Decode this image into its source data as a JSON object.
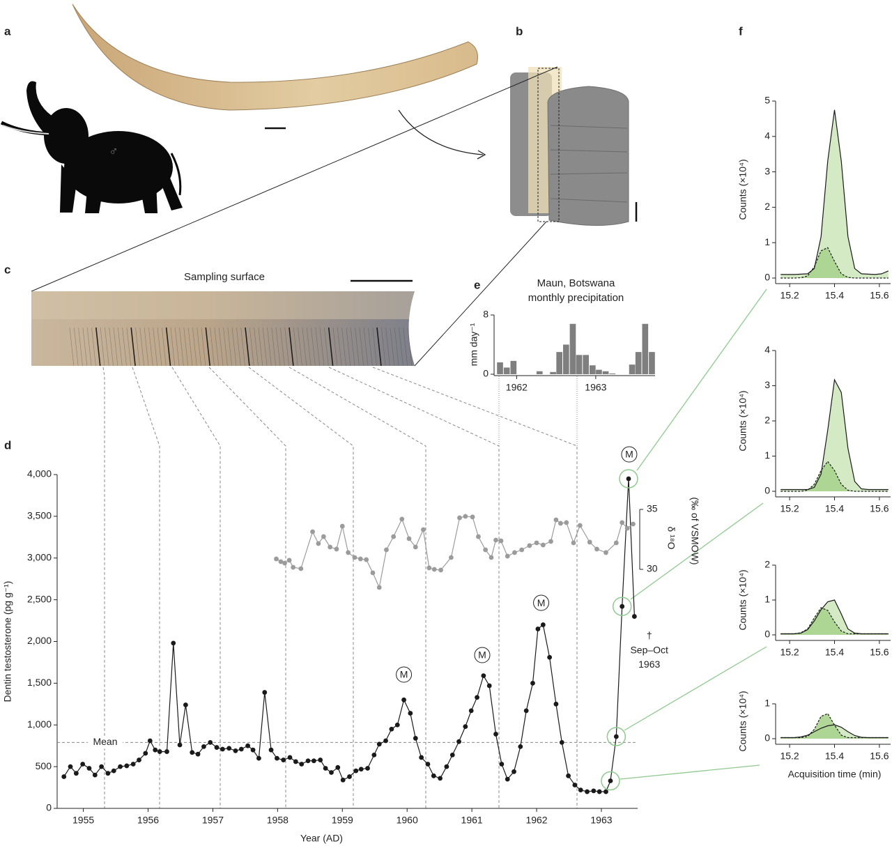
{
  "figure": {
    "panel_labels": [
      "a",
      "b",
      "c",
      "d",
      "e",
      "f"
    ],
    "sex_symbol": "♂",
    "sampling_surface": "Sampling surface"
  },
  "chart_data": [
    {
      "type": "line",
      "ylabel": "Dentin testosterone (pg g⁻¹)",
      "xlabel": "Year (AD)",
      "y2label": [
        "δ ¹⁸O",
        "(‰ of VSMOW)"
      ],
      "xlim": [
        1954.66,
        1963.56
      ],
      "xticks": [
        1955,
        1956,
        1957,
        1958,
        1959,
        1960,
        1961,
        1962,
        1963
      ],
      "ylim": [
        0,
        4000
      ],
      "yticks": [
        0,
        500,
        {
          "value": 1000,
          "label": "1,000"
        },
        {
          "value": 1500,
          "label": "1,500"
        },
        {
          "value": 2000,
          "label": "2,000"
        },
        {
          "value": 2500,
          "label": "2,500"
        },
        {
          "value": 3000,
          "label": "3,000"
        },
        {
          "value": 3500,
          "label": "3,500"
        },
        {
          "value": 4000,
          "label": "4,000"
        }
      ],
      "y2lim": [
        30,
        35
      ],
      "y2ticks": [
        30,
        35
      ],
      "series": [
        {
          "color": "#1a1a1a",
          "x": [
            1954.7,
            1954.8,
            1954.89,
            1954.99,
            1955.09,
            1955.18,
            1955.28,
            1955.38,
            1955.47,
            1955.57,
            1955.67,
            1955.77,
            1955.86,
            1955.96,
            1956.03,
            1956.11,
            1956.18,
            1956.29,
            1956.39,
            1956.49,
            1956.58,
            1956.68,
            1956.77,
            1956.86,
            1956.96,
            1957.06,
            1957.15,
            1957.25,
            1957.35,
            1957.44,
            1957.54,
            1957.62,
            1957.71,
            1957.8,
            1957.9,
            1957.99,
            1958.09,
            1958.19,
            1958.28,
            1958.37,
            1958.47,
            1958.56,
            1958.66,
            1958.74,
            1958.83,
            1958.93,
            1959.01,
            1959.11,
            1959.21,
            1959.29,
            1959.39,
            1959.49,
            1959.57,
            1959.67,
            1959.76,
            1959.85,
            1959.95,
            1960.05,
            1960.13,
            1960.22,
            1960.32,
            1960.41,
            1960.51,
            1960.61,
            1960.7,
            1960.8,
            1960.9,
            1960.99,
            1961.08,
            1961.18,
            1961.27,
            1961.37,
            1961.46,
            1961.55,
            1961.65,
            1961.75,
            1961.84,
            1961.94,
            1962.02,
            1962.1,
            1962.2,
            1962.3,
            1962.39,
            1962.49,
            1962.59,
            1962.68,
            1962.78,
            1962.88,
            1962.97,
            1963.07,
            1963.14,
            1963.23,
            1963.32,
            1963.42,
            1963.51
          ],
          "values": [
            380,
            500,
            420,
            530,
            480,
            400,
            500,
            420,
            450,
            500,
            510,
            530,
            580,
            660,
            810,
            700,
            680,
            680,
            1980,
            760,
            1240,
            670,
            650,
            740,
            790,
            730,
            710,
            720,
            690,
            710,
            750,
            700,
            600,
            1390,
            700,
            600,
            580,
            610,
            560,
            530,
            570,
            570,
            580,
            480,
            430,
            490,
            340,
            380,
            450,
            470,
            480,
            640,
            770,
            810,
            950,
            1000,
            1300,
            1140,
            840,
            610,
            530,
            390,
            360,
            500,
            640,
            800,
            980,
            1170,
            1330,
            1590,
            1470,
            890,
            530,
            350,
            440,
            740,
            1170,
            1500,
            2150,
            2200,
            1810,
            1250,
            790,
            390,
            280,
            220,
            200,
            210,
            200,
            200,
            330,
            860,
            2420,
            3950,
            2300
          ]
        },
        {
          "color": "#9b9b9b",
          "axis": "y2",
          "x": [
            1957.98,
            1958.05,
            1958.11,
            1958.18,
            1958.24,
            1958.36,
            1958.54,
            1958.63,
            1958.71,
            1958.81,
            1958.91,
            1959.0,
            1959.09,
            1959.19,
            1959.28,
            1959.37,
            1959.47,
            1959.57,
            1959.68,
            1959.79,
            1959.92,
            1960.03,
            1960.13,
            1960.25,
            1960.34,
            1960.42,
            1960.52,
            1960.68,
            1960.81,
            1960.9,
            1961.01,
            1961.1,
            1961.21,
            1961.3,
            1961.37,
            1961.45,
            1961.55,
            1961.66,
            1961.77,
            1961.89,
            1962.0,
            1962.1,
            1962.22,
            1962.3,
            1962.37,
            1962.46,
            1962.57,
            1962.67,
            1962.82,
            1962.93,
            1963.07,
            1963.23,
            1963.32,
            1963.4,
            1963.49
          ],
          "values": [
            30.87,
            30.64,
            30.52,
            30.76,
            30.17,
            30.06,
            33.14,
            32.15,
            32.73,
            31.86,
            31.69,
            33.6,
            31.4,
            30.99,
            30.87,
            30.81,
            29.71,
            28.49,
            31.63,
            32.73,
            34.19,
            32.56,
            31.86,
            33.31,
            30.12,
            30.0,
            29.94,
            30.99,
            34.3,
            34.42,
            34.37,
            32.73,
            31.63,
            30.99,
            32.44,
            32.38,
            31.1,
            31.4,
            31.63,
            31.98,
            32.21,
            32.03,
            32.33,
            34.13,
            33.84,
            33.9,
            32.21,
            33.66,
            32.27,
            31.69,
            31.4,
            32.21,
            33.9,
            33.43,
            33.78
          ]
        }
      ],
      "mean": {
        "value": 790,
        "label": "Mean"
      },
      "annotations": [
        {
          "text": "M",
          "x": 1959.95,
          "y": 1603
        },
        {
          "text": "M",
          "x": 1961.16,
          "y": 1837
        },
        {
          "text": "M",
          "x": 1962.07,
          "y": 2463
        },
        {
          "text": "M",
          "x": 1963.43,
          "y": 4242
        },
        {
          "text": "†",
          "x": 1963.74,
          "y": 2071
        },
        {
          "text": "Sep–Oct",
          "x": 1963.74,
          "y": 1896
        },
        {
          "text": "1963",
          "x": 1963.74,
          "y": 1728
        }
      ],
      "highlight_points": [
        93,
        92,
        91,
        90
      ],
      "highlight_color": "#8fc98f"
    },
    {
      "type": "bar",
      "title": [
        "Maun, Botswana",
        "monthly precipitation"
      ],
      "ylabel": "mm day⁻¹",
      "color": "#7f7f7f",
      "x": [
        1961.79,
        1961.875,
        1961.96,
        1962.04,
        1962.125,
        1962.21,
        1962.29,
        1962.375,
        1962.46,
        1962.54,
        1962.625,
        1962.71,
        1962.79,
        1962.875,
        1962.96,
        1963.04,
        1963.125,
        1963.21,
        1963.29,
        1963.375,
        1963.46,
        1963.54,
        1963.625,
        1963.71
      ],
      "values": [
        1.6,
        0.9,
        1.8,
        0,
        0,
        0,
        0.4,
        0,
        0.3,
        3.0,
        4.0,
        6.8,
        2.6,
        2.6,
        1.2,
        0.6,
        0.4,
        0.1,
        0,
        0,
        1.3,
        3.0,
        6.8,
        3.0
      ],
      "xlim": [
        1961.75,
        1963.75
      ],
      "xticks": [
        1962,
        1963
      ],
      "ylim": [
        0,
        8
      ],
      "yticks": [
        0,
        8
      ]
    },
    {
      "type": "area",
      "ylabel": "Counts (×10⁴)",
      "xlim": [
        15.15,
        15.65
      ],
      "xticks": [
        15.2,
        15.4,
        15.6
      ],
      "ylim": [
        0,
        5
      ],
      "yticks": [
        0,
        1,
        2,
        3,
        4,
        5
      ],
      "x": [
        15.16,
        15.19,
        15.22,
        15.25,
        15.28,
        15.31,
        15.34,
        15.37,
        15.4,
        15.43,
        15.46,
        15.49,
        15.52,
        15.55,
        15.58,
        15.61,
        15.64
      ],
      "series": [
        {
          "color": "#1a1a1a",
          "fill": "#cfe8bf",
          "style": "solid",
          "values": [
            0.1,
            0.1,
            0.1,
            0.11,
            0.12,
            0.27,
            1.17,
            3.31,
            4.75,
            3.31,
            1.17,
            0.27,
            0.12,
            0.11,
            0.1,
            0.12,
            0.2
          ]
        },
        {
          "color": "#1a1a1a",
          "fill": "#a8d48e",
          "style": "dashed",
          "values": [
            0,
            0,
            0,
            0.01,
            0.06,
            0.32,
            0.77,
            0.86,
            0.47,
            0.12,
            0.02,
            0,
            0,
            0,
            0,
            0,
            0
          ]
        }
      ]
    },
    {
      "type": "area",
      "ylabel": "Counts (×10⁴)",
      "xlim": [
        15.15,
        15.65
      ],
      "xticks": [
        15.2,
        15.4,
        15.6
      ],
      "ylim": [
        0,
        4
      ],
      "yticks": [
        0,
        1,
        2,
        3,
        4
      ],
      "x": [
        15.16,
        15.19,
        15.22,
        15.25,
        15.28,
        15.31,
        15.34,
        15.37,
        15.4,
        15.43,
        15.46,
        15.49,
        15.52,
        15.55,
        15.58,
        15.61,
        15.64
      ],
      "series": [
        {
          "color": "#1a1a1a",
          "fill": "#cfe8bf",
          "style": "solid",
          "values": [
            0.05,
            0.05,
            0.05,
            0.05,
            0.05,
            0.11,
            0.49,
            1.74,
            3.17,
            2.81,
            1.22,
            0.28,
            0.07,
            0.05,
            0.05,
            0.05,
            0.05
          ]
        },
        {
          "color": "#1a1a1a",
          "fill": "#a8d48e",
          "style": "dashed",
          "values": [
            0,
            0,
            0,
            0,
            0.03,
            0.2,
            0.59,
            0.85,
            0.59,
            0.2,
            0.03,
            0,
            0,
            0,
            0,
            0,
            0
          ]
        }
      ]
    },
    {
      "type": "area",
      "ylabel": "Counts (×10⁴)",
      "xlim": [
        15.15,
        15.65
      ],
      "xticks": [
        15.2,
        15.4,
        15.6
      ],
      "ylim": [
        0,
        2
      ],
      "yticks": [
        0,
        1,
        2
      ],
      "x": [
        15.16,
        15.19,
        15.22,
        15.25,
        15.28,
        15.31,
        15.34,
        15.37,
        15.4,
        15.43,
        15.46,
        15.49,
        15.52,
        15.55,
        15.58,
        15.61,
        15.64
      ],
      "series": [
        {
          "color": "#1a1a1a",
          "fill": "#cfe8bf",
          "style": "solid",
          "values": [
            0.03,
            0.03,
            0.03,
            0.05,
            0.15,
            0.4,
            0.72,
            0.95,
            1.0,
            0.6,
            0.17,
            0.05,
            0.03,
            0.03,
            0.03,
            0.03,
            0.03
          ]
        },
        {
          "color": "#1a1a1a",
          "fill": "#a8d48e",
          "style": "dashed",
          "values": [
            0.03,
            0.03,
            0.03,
            0.06,
            0.17,
            0.49,
            0.78,
            0.7,
            0.37,
            0.11,
            0.03,
            0.03,
            0.03,
            0.03,
            0.03,
            0.03,
            0.03
          ]
        }
      ]
    },
    {
      "type": "area",
      "ylabel": "Counts (×10⁴)",
      "xlabel": "Acquisition time (min)",
      "xlim": [
        15.15,
        15.65
      ],
      "xticks": [
        15.2,
        15.4,
        15.6
      ],
      "ylim": [
        0,
        1
      ],
      "yticks": [
        0,
        1
      ],
      "x": [
        15.16,
        15.19,
        15.22,
        15.25,
        15.28,
        15.31,
        15.34,
        15.37,
        15.4,
        15.43,
        15.46,
        15.49,
        15.52,
        15.55,
        15.58,
        15.61,
        15.64
      ],
      "series": [
        {
          "color": "#1a1a1a",
          "fill": "#cfe8bf",
          "style": "solid",
          "values": [
            0.03,
            0.03,
            0.03,
            0.05,
            0.1,
            0.2,
            0.3,
            0.37,
            0.4,
            0.33,
            0.2,
            0.09,
            0.04,
            0.03,
            0.03,
            0.03,
            0.03
          ]
        },
        {
          "color": "#1a1a1a",
          "fill": "#a8d48e",
          "style": "dashed",
          "values": [
            0.03,
            0.03,
            0.03,
            0.03,
            0.06,
            0.27,
            0.64,
            0.72,
            0.39,
            0.1,
            0.03,
            0.03,
            0.03,
            0.03,
            0.03,
            0.03,
            0.03
          ]
        }
      ]
    }
  ]
}
